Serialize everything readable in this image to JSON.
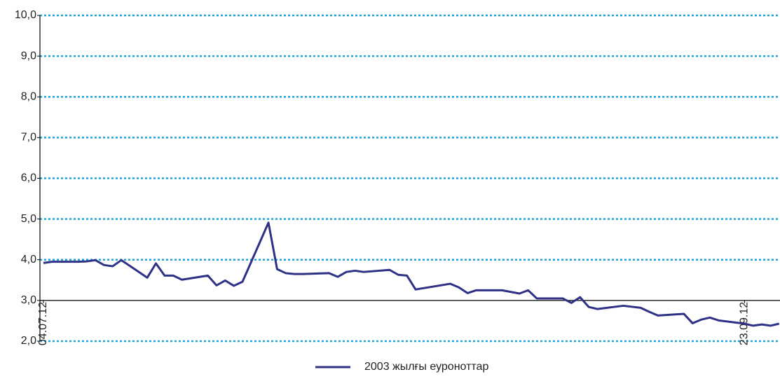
{
  "chart_data": {
    "type": "line",
    "x": [
      0,
      1,
      2,
      3,
      4,
      5,
      6,
      7,
      8,
      9,
      12,
      13,
      14,
      15,
      16,
      19,
      20,
      21,
      22,
      23,
      26,
      27,
      28,
      29,
      30,
      33,
      34,
      35,
      36,
      37,
      40,
      41,
      42,
      43,
      47,
      48,
      49,
      50,
      53,
      55,
      56,
      57,
      60,
      61,
      62,
      63,
      64,
      67,
      69,
      70,
      71,
      74,
      75,
      76,
      77,
      78,
      81,
      82,
      83,
      84,
      85
    ],
    "series": [
      {
        "name": "2003 жылғы еуроноттар",
        "color": "#2e3185",
        "values": [
          3.92,
          3.95,
          3.95,
          3.95,
          3.95,
          3.96,
          3.99,
          3.87,
          3.84,
          3.99,
          3.56,
          3.91,
          3.61,
          3.61,
          3.51,
          3.61,
          3.37,
          3.49,
          3.36,
          3.46,
          4.91,
          3.77,
          3.67,
          3.65,
          3.65,
          3.67,
          3.58,
          3.7,
          3.73,
          3.7,
          3.75,
          3.63,
          3.61,
          3.27,
          3.41,
          3.32,
          3.18,
          3.25,
          3.25,
          3.17,
          3.25,
          3.05,
          3.05,
          2.94,
          3.08,
          2.84,
          2.79,
          2.87,
          2.82,
          2.72,
          2.63,
          2.67,
          2.44,
          2.53,
          2.58,
          2.51,
          2.43,
          2.38,
          2.41,
          2.38,
          2.43
        ]
      }
    ],
    "xlim": [
      -0.4,
      85.1
    ],
    "xticks": [
      {
        "value": 0,
        "label": "04.07.12"
      },
      {
        "value": 81,
        "label": "23.09.12"
      }
    ],
    "ylim": [
      2,
      10
    ],
    "yticks": [
      {
        "value": 2,
        "label": "2,0"
      },
      {
        "value": 3,
        "label": "3,0"
      },
      {
        "value": 4,
        "label": "4,0"
      },
      {
        "value": 5,
        "label": "5,0"
      },
      {
        "value": 6,
        "label": "6,0"
      },
      {
        "value": 7,
        "label": "7,0"
      },
      {
        "value": 8,
        "label": "8,0"
      },
      {
        "value": 9,
        "label": "9,0"
      },
      {
        "value": 10,
        "label": "10,0"
      }
    ],
    "x_axis_crosses": 3,
    "grid": true,
    "grid_color": "#1ca5de",
    "legend": "bottom"
  }
}
